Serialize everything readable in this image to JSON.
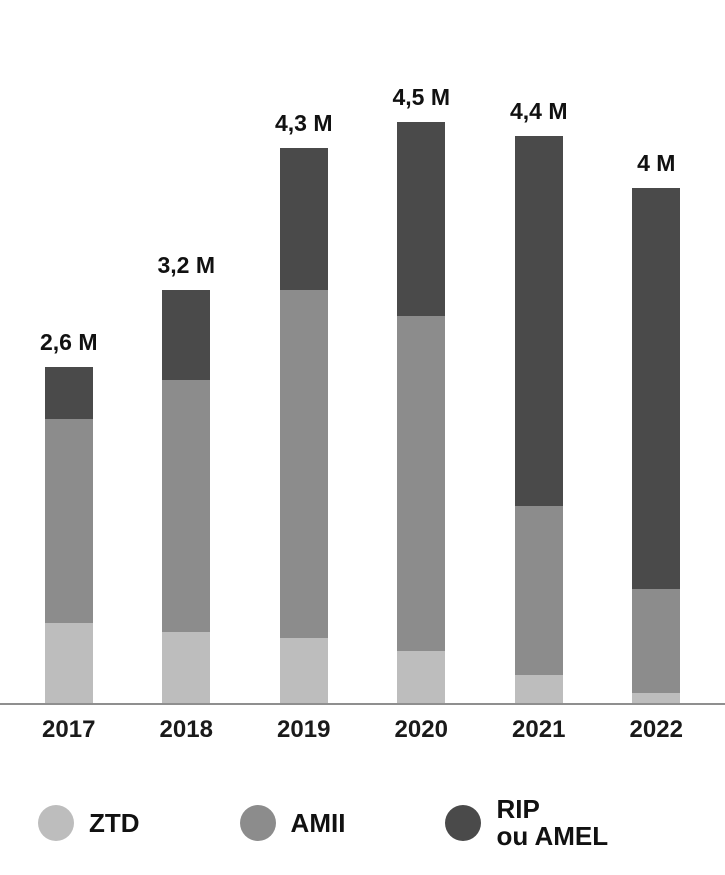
{
  "chart_data": {
    "type": "bar",
    "stacked": true,
    "categories": [
      "2017",
      "2018",
      "2019",
      "2020",
      "2021",
      "2022"
    ],
    "series": [
      {
        "name": "ZTD",
        "color": "#bdbdbd",
        "values": [
          0.62,
          0.55,
          0.5,
          0.4,
          0.22,
          0.08
        ]
      },
      {
        "name": "AMII",
        "color": "#8c8c8c",
        "values": [
          1.58,
          1.95,
          2.7,
          2.6,
          1.31,
          0.81
        ]
      },
      {
        "name": "RIP ou AMEL",
        "color": "#4a4a4a",
        "values": [
          0.4,
          0.7,
          1.1,
          1.5,
          2.87,
          3.11
        ]
      }
    ],
    "totals": [
      2.6,
      3.2,
      4.3,
      4.5,
      4.4,
      4.0
    ],
    "total_labels": [
      "2,6 M",
      "3,2 M",
      "4,3 M",
      "4,5 M",
      "4,4 M",
      "4 M"
    ],
    "unit": "millions",
    "ylim": [
      0,
      4.5
    ],
    "grid": false,
    "legend_position": "bottom",
    "axis_line_color": "#8f8f8f"
  },
  "legend": {
    "items": [
      {
        "id": "ztd",
        "label": "ZTD",
        "color": "#bdbdbd"
      },
      {
        "id": "amii",
        "label": "AMII",
        "color": "#8c8c8c"
      },
      {
        "id": "rip-ou-amel",
        "label": "RIP\nou AMEL",
        "color": "#4a4a4a"
      }
    ]
  }
}
